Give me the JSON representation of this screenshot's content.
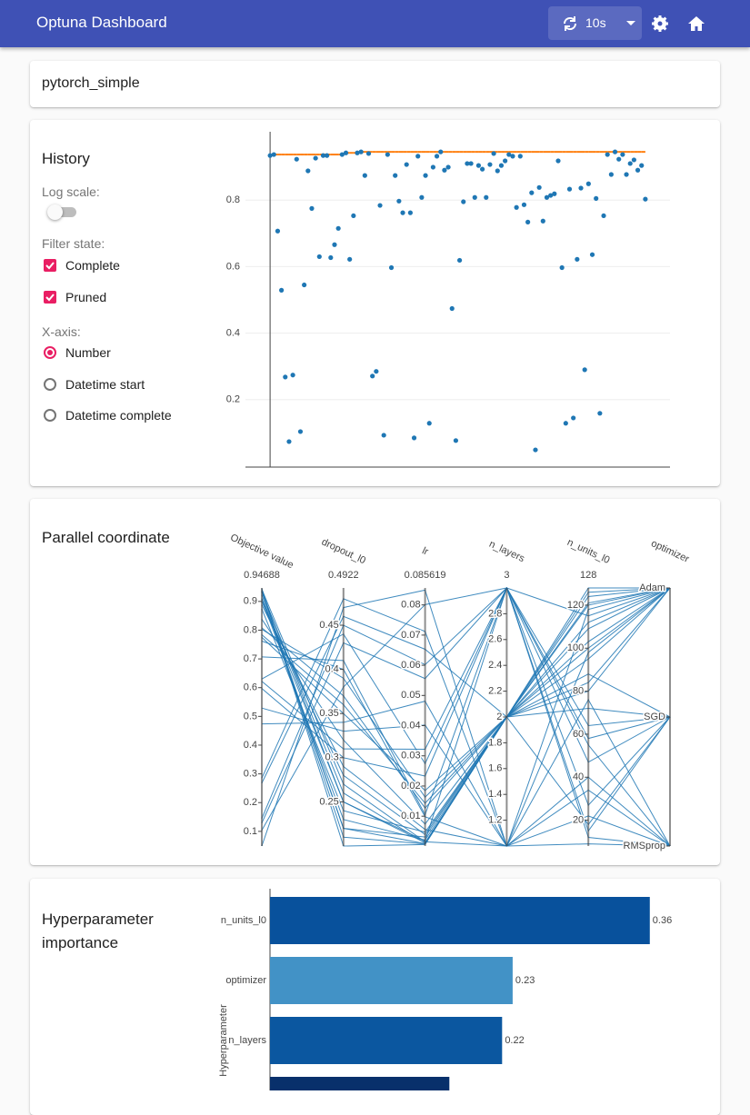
{
  "header": {
    "title": "Optuna Dashboard",
    "refresh": "10s"
  },
  "study": {
    "name": "pytorch_simple"
  },
  "history_controls": {
    "log_scale_label": "Log scale:",
    "filter_label": "Filter state:",
    "filters": [
      "Complete",
      "Pruned"
    ],
    "x_axis_label": "X-axis:",
    "x_axis_options": [
      "Number",
      "Datetime start",
      "Datetime complete"
    ]
  },
  "chart_data": [
    {
      "type": "scatter",
      "title": "History",
      "color": "#1f77b4",
      "best_line_color": "#ff7f0e",
      "x": [
        0,
        1,
        2,
        3,
        4,
        5,
        6,
        7,
        8,
        9,
        10,
        11,
        12,
        13,
        14,
        15,
        16,
        17,
        18,
        19,
        20,
        21,
        22,
        23,
        24,
        25,
        26,
        27,
        28,
        29,
        30,
        31,
        32,
        33,
        34,
        35,
        36,
        37,
        38,
        39,
        40,
        41,
        42,
        43,
        44,
        45,
        46,
        47,
        48,
        49,
        50,
        51,
        52,
        53,
        54,
        55,
        56,
        57,
        58,
        59,
        60,
        61,
        62,
        63,
        64,
        65,
        66,
        67,
        68,
        69,
        70,
        71,
        72,
        73,
        74,
        75,
        76,
        77,
        78,
        79,
        80,
        81,
        82,
        83,
        84,
        85,
        86,
        87,
        88,
        89,
        90,
        91,
        92,
        93,
        94,
        95,
        96,
        97,
        98,
        99
      ],
      "values": [
        0.934,
        0.937,
        0.707,
        0.529,
        0.268,
        0.074,
        0.274,
        0.923,
        0.104,
        0.545,
        0.888,
        0.775,
        0.926,
        0.63,
        0.934,
        0.934,
        0.627,
        0.666,
        0.715,
        0.937,
        0.942,
        0.622,
        0.753,
        0.942,
        0.945,
        0.874,
        0.94,
        0.271,
        0.285,
        0.784,
        0.093,
        0.937,
        0.597,
        0.874,
        0.797,
        0.762,
        0.907,
        0.762,
        0.085,
        0.932,
        0.808,
        0.874,
        0.129,
        0.899,
        0.932,
        0.945,
        0.89,
        0.899,
        0.474,
        0.077,
        0.619,
        0.795,
        0.91,
        0.91,
        0.808,
        0.904,
        0.893,
        0.808,
        0.907,
        0.94,
        0.888,
        0.904,
        0.918,
        0.937,
        0.932,
        0.778,
        0.932,
        0.786,
        0.734,
        0.822,
        0.049,
        0.838,
        0.737,
        0.808,
        0.814,
        0.819,
        0.918,
        0.597,
        0.129,
        0.833,
        0.145,
        0.622,
        0.836,
        0.29,
        0.849,
        0.636,
        0.805,
        0.159,
        0.753,
        0.937,
        0.877,
        0.945,
        0.923,
        0.937,
        0.877,
        0.91,
        0.921,
        0.89,
        0.904,
        0.803
      ],
      "xlim": [
        -6.5,
        105.5
      ],
      "ylim": [
        0,
        1
      ],
      "yticks": [
        0.2,
        0.4,
        0.6,
        0.8
      ],
      "grid": true
    },
    {
      "type": "parallel",
      "title": "Parallel coordinate",
      "color": "#1f77b4",
      "dimensions": [
        {
          "label": "Objective value",
          "range": [
            0.049,
            0.94688
          ],
          "ticks": [
            0.1,
            0.2,
            0.3,
            0.4,
            0.5,
            0.6,
            0.7,
            0.8,
            0.9
          ],
          "values": [
            0.934,
            0.707,
            0.529,
            0.268,
            0.923,
            0.104,
            0.888,
            0.775,
            0.63,
            0.937,
            0.942,
            0.622,
            0.874,
            0.285,
            0.784,
            0.597,
            0.907,
            0.762,
            0.932,
            0.129,
            0.899,
            0.945,
            0.474,
            0.91,
            0.808,
            0.049,
            0.838,
            0.145,
            0.936,
            0.803
          ]
        },
        {
          "label": "dropout_l0",
          "range": [
            0.2,
            0.4922
          ],
          "ticks": [
            0.25,
            0.3,
            0.35,
            0.4,
            0.45
          ],
          "values": [
            0.25,
            0.41,
            0.33,
            0.46,
            0.22,
            0.38,
            0.29,
            0.35,
            0.44,
            0.21,
            0.27,
            0.31,
            0.24,
            0.48,
            0.36,
            0.3,
            0.23,
            0.4,
            0.26,
            0.43,
            0.28,
            0.2,
            0.34,
            0.25,
            0.37,
            0.47,
            0.32,
            0.45,
            0.22,
            0.39
          ]
        },
        {
          "label": "lr",
          "range": [
            0.00012,
            0.085619
          ],
          "ticks": [
            0.01,
            0.02,
            0.03,
            0.04,
            0.05,
            0.06,
            0.07,
            0.08
          ],
          "values": [
            0.0012,
            0.0105,
            0.0402,
            0.0653,
            0.0031,
            0.0801,
            0.0056,
            0.0185,
            0.0274,
            0.0008,
            0.0015,
            0.0322,
            0.0047,
            0.0712,
            0.0143,
            0.0233,
            0.0021,
            0.0098,
            0.0011,
            0.0556,
            0.0039,
            0.0006,
            0.0481,
            0.0018,
            0.0127,
            0.0849,
            0.0074,
            0.0602,
            0.0009,
            0.0163
          ]
        },
        {
          "label": "n_layers",
          "range": [
            1,
            3
          ],
          "ticks": [
            1.2,
            1.4,
            1.6,
            1.8,
            2,
            2.2,
            2.4,
            2.6,
            2.8
          ],
          "values": [
            2,
            3,
            1,
            2,
            2,
            3,
            1,
            2,
            3,
            2,
            1,
            3,
            2,
            1,
            2,
            3,
            2,
            1,
            2,
            3,
            2,
            2,
            1,
            3,
            2,
            1,
            2,
            3,
            2,
            2
          ]
        },
        {
          "label": "n_units_l0",
          "range": [
            8,
            128
          ],
          "ticks": [
            20,
            40,
            60,
            80,
            100,
            120
          ],
          "values": [
            121,
            64,
            40,
            18,
            112,
            12,
            98,
            72,
            55,
            126,
            118,
            47,
            103,
            22,
            80,
            58,
            109,
            76,
            124,
            15,
            95,
            128,
            34,
            115,
            88,
            9,
            100,
            27,
            120,
            84
          ]
        },
        {
          "label": "optimizer",
          "categories": [
            "RMSprop",
            "SGD",
            "Adam"
          ],
          "values": [
            "Adam",
            "SGD",
            "RMSprop",
            "SGD",
            "Adam",
            "RMSprop",
            "Adam",
            "SGD",
            "RMSprop",
            "Adam",
            "Adam",
            "SGD",
            "Adam",
            "RMSprop",
            "Adam",
            "SGD",
            "Adam",
            "RMSprop",
            "Adam",
            "SGD",
            "Adam",
            "Adam",
            "RMSprop",
            "Adam",
            "SGD",
            "RMSprop",
            "Adam",
            "SGD",
            "Adam",
            "Adam"
          ]
        }
      ]
    },
    {
      "type": "hbar",
      "title": "Hyperparameter importance",
      "y_label": "Hyperparameter",
      "categories": [
        "n_units_l0",
        "optimizer",
        "n_layers",
        null
      ],
      "values": [
        0.36,
        0.23,
        0.22,
        0.17
      ],
      "colors": [
        "#08519c",
        "#4292c6",
        "#0b57a0",
        "#08306b"
      ],
      "xlim": [
        0,
        0.38
      ]
    }
  ]
}
